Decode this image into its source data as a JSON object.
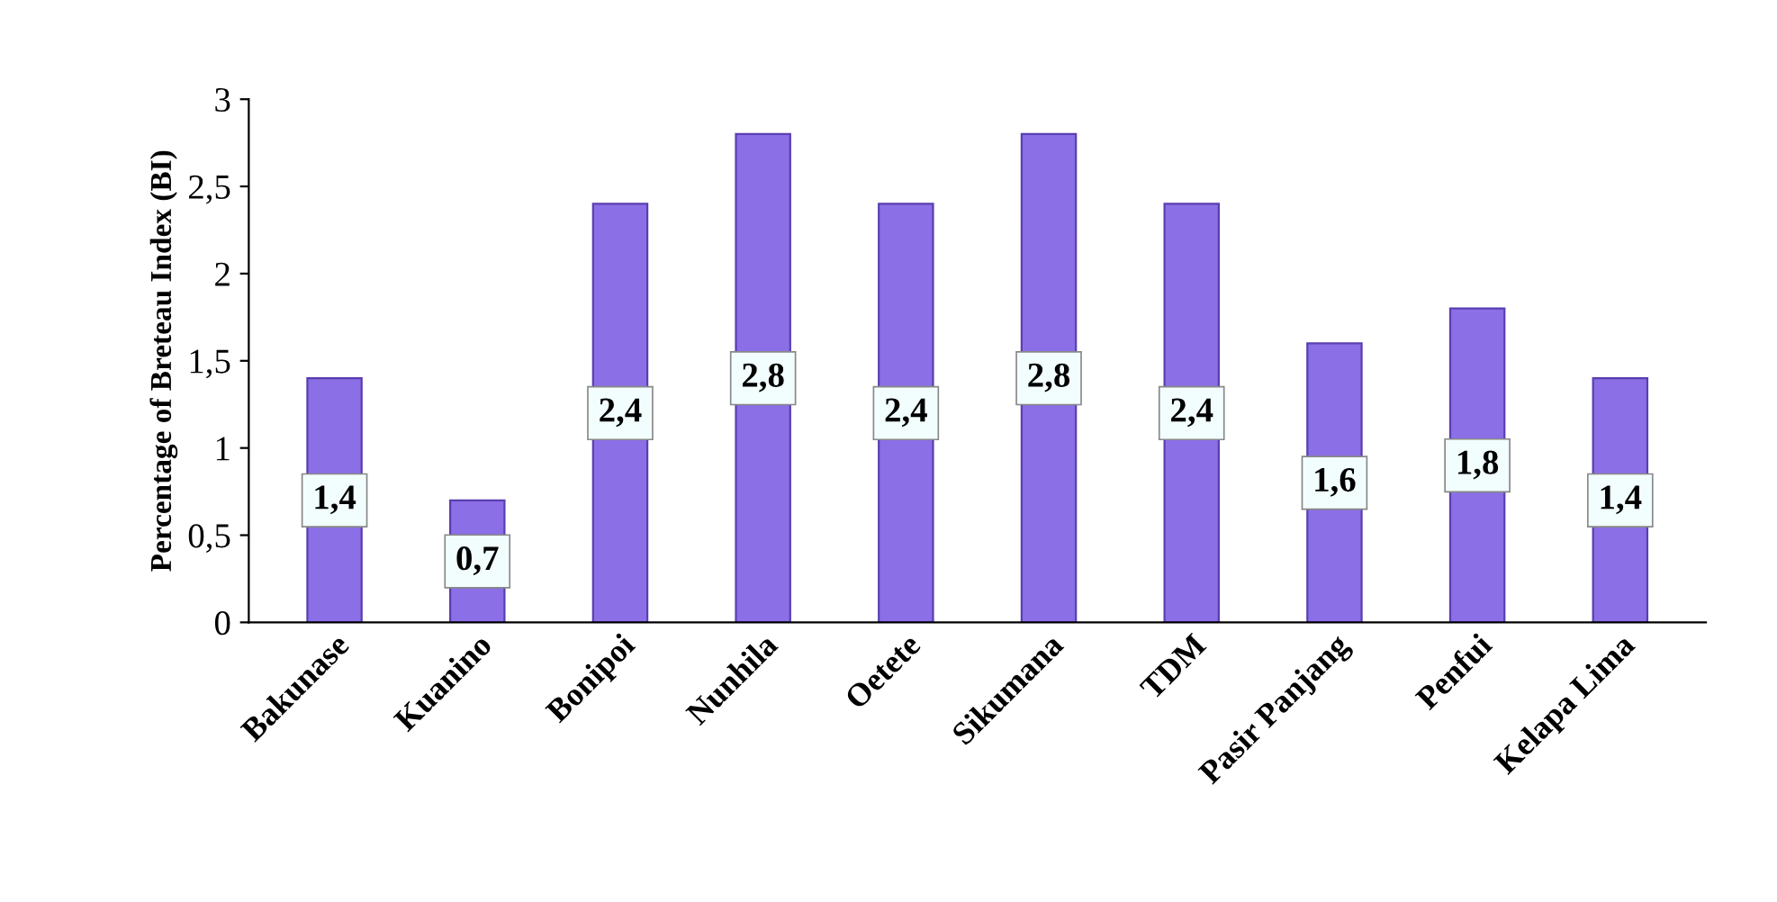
{
  "chart_data": {
    "type": "bar",
    "ylabel": "Percentage of Breteau Index (BI)",
    "categories": [
      "Bakunase",
      "Kuanino",
      "Bonipoi",
      "Nunhila",
      "Oetete",
      "Sikumana",
      "TDM",
      "Pasir Panjang",
      "Penfui",
      "Kelapa Lima"
    ],
    "values": [
      1.4,
      0.7,
      2.4,
      2.8,
      2.4,
      2.8,
      2.4,
      1.6,
      1.8,
      1.4
    ],
    "value_labels": [
      "1,4",
      "0,7",
      "2,4",
      "2,8",
      "2,4",
      "2,8",
      "2,4",
      "1,6",
      "1,8",
      "1,4"
    ],
    "color": "#8b6fe6",
    "ylim": [
      0,
      3
    ],
    "yticks": [
      0,
      {
        "value": 0.5,
        "label": "0,5"
      },
      1,
      {
        "value": 1.5,
        "label": "1,5"
      },
      2,
      {
        "value": 2.5,
        "label": "2,5"
      },
      3
    ],
    "grid": false,
    "legend": false
  }
}
